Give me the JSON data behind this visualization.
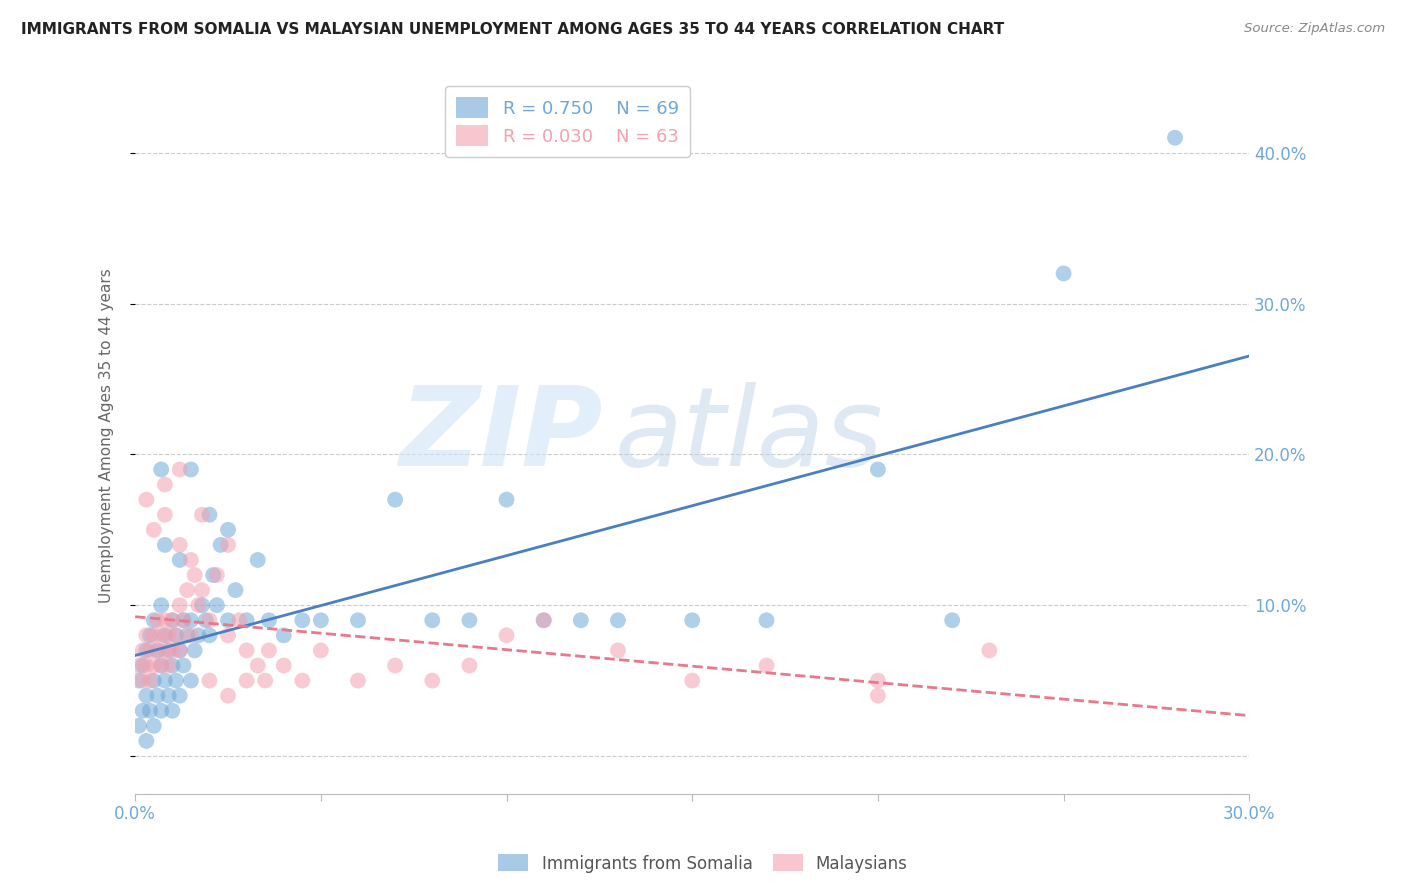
{
  "title": "IMMIGRANTS FROM SOMALIA VS MALAYSIAN UNEMPLOYMENT AMONG AGES 35 TO 44 YEARS CORRELATION CHART",
  "source": "Source: ZipAtlas.com",
  "ylabel": "Unemployment Among Ages 35 to 44 years",
  "xlim": [
    0.0,
    0.3
  ],
  "ylim": [
    -0.025,
    0.45
  ],
  "x_ticks": [
    0.0,
    0.05,
    0.1,
    0.15,
    0.2,
    0.25,
    0.3
  ],
  "x_tick_labels": [
    "0.0%",
    "",
    "",
    "",
    "",
    "",
    "30.0%"
  ],
  "y_ticks": [
    0.0,
    0.1,
    0.2,
    0.3,
    0.4
  ],
  "y_tick_labels": [
    "",
    "10.0%",
    "20.0%",
    "30.0%",
    "40.0%"
  ],
  "grid_color": "#cccccc",
  "blue_color": "#6fa8d6",
  "pink_color": "#f4a0b0",
  "blue_line_color": "#4a7fc1",
  "pink_line_color": "#e8788a",
  "legend_r1": "R = 0.750",
  "legend_n1": "N = 69",
  "legend_r2": "R = 0.030",
  "legend_n2": "N = 63",
  "somalia_x": [
    0.001,
    0.001,
    0.002,
    0.002,
    0.003,
    0.003,
    0.003,
    0.004,
    0.004,
    0.005,
    0.005,
    0.005,
    0.006,
    0.006,
    0.007,
    0.007,
    0.007,
    0.008,
    0.008,
    0.009,
    0.009,
    0.01,
    0.01,
    0.01,
    0.011,
    0.011,
    0.012,
    0.012,
    0.013,
    0.013,
    0.014,
    0.015,
    0.015,
    0.016,
    0.017,
    0.018,
    0.019,
    0.02,
    0.021,
    0.022,
    0.023,
    0.025,
    0.027,
    0.03,
    0.033,
    0.036,
    0.04,
    0.045,
    0.05,
    0.06,
    0.07,
    0.08,
    0.09,
    0.1,
    0.11,
    0.12,
    0.13,
    0.15,
    0.17,
    0.2,
    0.22,
    0.015,
    0.02,
    0.025,
    0.008,
    0.012,
    0.007,
    0.25,
    0.28
  ],
  "somalia_y": [
    0.02,
    0.05,
    0.03,
    0.06,
    0.01,
    0.04,
    0.07,
    0.03,
    0.08,
    0.02,
    0.05,
    0.09,
    0.04,
    0.07,
    0.03,
    0.06,
    0.1,
    0.05,
    0.08,
    0.04,
    0.07,
    0.03,
    0.06,
    0.09,
    0.05,
    0.08,
    0.04,
    0.07,
    0.06,
    0.09,
    0.08,
    0.05,
    0.09,
    0.07,
    0.08,
    0.1,
    0.09,
    0.08,
    0.12,
    0.1,
    0.14,
    0.09,
    0.11,
    0.09,
    0.13,
    0.09,
    0.08,
    0.09,
    0.09,
    0.09,
    0.17,
    0.09,
    0.09,
    0.17,
    0.09,
    0.09,
    0.09,
    0.09,
    0.09,
    0.19,
    0.09,
    0.19,
    0.16,
    0.15,
    0.14,
    0.13,
    0.19,
    0.32,
    0.41
  ],
  "malaysia_x": [
    0.001,
    0.002,
    0.002,
    0.003,
    0.003,
    0.004,
    0.004,
    0.005,
    0.005,
    0.006,
    0.006,
    0.007,
    0.007,
    0.008,
    0.008,
    0.009,
    0.009,
    0.01,
    0.01,
    0.011,
    0.012,
    0.012,
    0.013,
    0.014,
    0.015,
    0.015,
    0.016,
    0.017,
    0.018,
    0.02,
    0.022,
    0.025,
    0.028,
    0.03,
    0.033,
    0.036,
    0.04,
    0.045,
    0.05,
    0.06,
    0.07,
    0.08,
    0.09,
    0.1,
    0.11,
    0.13,
    0.15,
    0.17,
    0.2,
    0.23,
    0.003,
    0.005,
    0.008,
    0.012,
    0.018,
    0.025,
    0.035,
    0.008,
    0.012,
    0.2,
    0.02,
    0.025,
    0.03
  ],
  "malaysia_y": [
    0.06,
    0.05,
    0.07,
    0.06,
    0.08,
    0.05,
    0.07,
    0.06,
    0.08,
    0.07,
    0.09,
    0.06,
    0.08,
    0.07,
    0.09,
    0.06,
    0.08,
    0.07,
    0.09,
    0.08,
    0.07,
    0.1,
    0.09,
    0.11,
    0.08,
    0.13,
    0.12,
    0.1,
    0.11,
    0.09,
    0.12,
    0.08,
    0.09,
    0.07,
    0.06,
    0.07,
    0.06,
    0.05,
    0.07,
    0.05,
    0.06,
    0.05,
    0.06,
    0.08,
    0.09,
    0.07,
    0.05,
    0.06,
    0.05,
    0.07,
    0.17,
    0.15,
    0.16,
    0.14,
    0.16,
    0.14,
    0.05,
    0.18,
    0.19,
    0.04,
    0.05,
    0.04,
    0.05
  ]
}
